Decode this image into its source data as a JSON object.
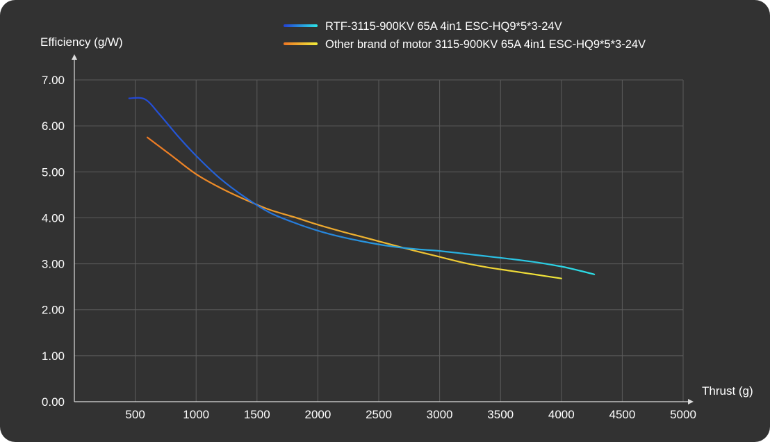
{
  "chart_data": {
    "type": "line",
    "xlabel": "Thrust (g)",
    "ylabel": "Efficiency (g/W)",
    "xlim": [
      0,
      5000
    ],
    "ylim": [
      0,
      7
    ],
    "x_ticks": [
      500,
      1000,
      1500,
      2000,
      2500,
      3000,
      3500,
      4000,
      4500,
      5000
    ],
    "y_ticks": [
      "0.00",
      "1.00",
      "2.00",
      "3.00",
      "4.00",
      "5.00",
      "6.00",
      "7.00"
    ],
    "grid": true,
    "legend_position": "top",
    "series": [
      {
        "name": "RTF-3115-900KV 65A 4in1 ESC-HQ9*5*3-24V",
        "gradient": [
          "#2346d6",
          "#2ce0e6"
        ],
        "points": [
          [
            450,
            6.6
          ],
          [
            580,
            6.58
          ],
          [
            700,
            6.25
          ],
          [
            850,
            5.78
          ],
          [
            1000,
            5.35
          ],
          [
            1200,
            4.85
          ],
          [
            1400,
            4.45
          ],
          [
            1600,
            4.12
          ],
          [
            1800,
            3.9
          ],
          [
            2000,
            3.72
          ],
          [
            2200,
            3.58
          ],
          [
            2400,
            3.47
          ],
          [
            2600,
            3.38
          ],
          [
            2800,
            3.32
          ],
          [
            3000,
            3.28
          ],
          [
            3200,
            3.22
          ],
          [
            3400,
            3.16
          ],
          [
            3600,
            3.1
          ],
          [
            3800,
            3.03
          ],
          [
            4000,
            2.94
          ],
          [
            4150,
            2.85
          ],
          [
            4270,
            2.77
          ]
        ]
      },
      {
        "name": "Other brand of motor 3115-900KV 65A 4in1 ESC-HQ9*5*3-24V",
        "gradient": [
          "#ee7a24",
          "#f0e83a"
        ],
        "points": [
          [
            600,
            5.75
          ],
          [
            800,
            5.35
          ],
          [
            1000,
            4.95
          ],
          [
            1200,
            4.65
          ],
          [
            1400,
            4.4
          ],
          [
            1600,
            4.18
          ],
          [
            1800,
            4.02
          ],
          [
            2000,
            3.85
          ],
          [
            2200,
            3.7
          ],
          [
            2400,
            3.56
          ],
          [
            2600,
            3.42
          ],
          [
            2800,
            3.28
          ],
          [
            3000,
            3.15
          ],
          [
            3200,
            3.02
          ],
          [
            3400,
            2.92
          ],
          [
            3600,
            2.84
          ],
          [
            3800,
            2.76
          ],
          [
            4000,
            2.68
          ]
        ]
      }
    ]
  }
}
